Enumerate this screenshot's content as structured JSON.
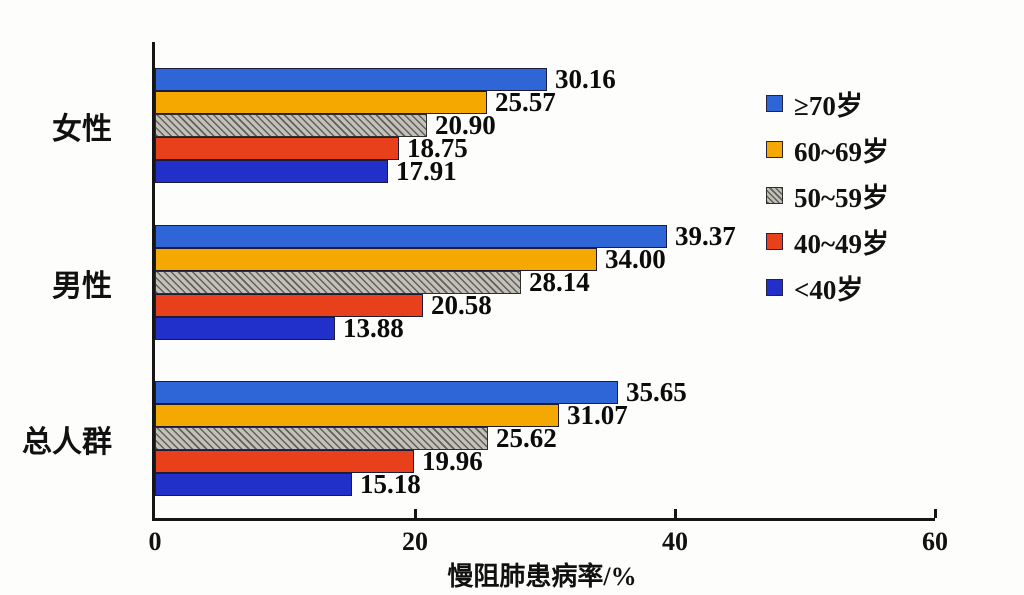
{
  "chart_data": {
    "type": "bar",
    "orientation": "horizontal",
    "title": "",
    "xlabel": "慢阻肺患病率/%",
    "ylabel": "",
    "xlim": [
      0,
      60
    ],
    "xticks": [
      0,
      20,
      40,
      60
    ],
    "grid": false,
    "legend_position": "right",
    "value_labels": true,
    "value_decimals": 2,
    "categories": [
      "女性",
      "男性",
      "总人群"
    ],
    "series": [
      {
        "name": "≥70岁",
        "color": "#2e66d8",
        "hatch": false,
        "values": [
          30.16,
          39.37,
          35.65
        ]
      },
      {
        "name": "60~69岁",
        "color": "#f5a800",
        "hatch": false,
        "values": [
          25.57,
          34.0,
          31.07
        ]
      },
      {
        "name": "50~59岁",
        "color": "#c2c0b8",
        "hatch": true,
        "values": [
          20.9,
          28.14,
          25.62
        ]
      },
      {
        "name": "40~49岁",
        "color": "#e8401a",
        "hatch": false,
        "values": [
          18.75,
          20.58,
          19.96
        ]
      },
      {
        "name": "<40岁",
        "color": "#2030c8",
        "hatch": false,
        "values": [
          17.91,
          13.88,
          15.18
        ]
      }
    ],
    "axis_color": "#151515",
    "label_color": "#111111"
  }
}
